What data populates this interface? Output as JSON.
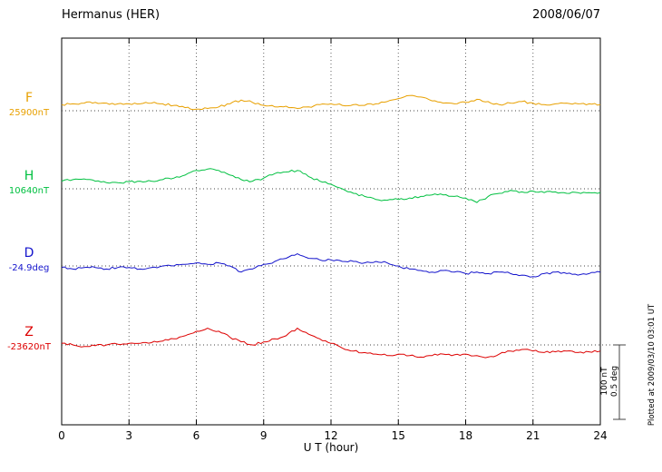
{
  "header": {
    "title": "Hermanus (HER)",
    "date": "2008/06/07"
  },
  "x_axis": {
    "label": "U T (hour)",
    "ticks": [
      0,
      3,
      6,
      9,
      12,
      15,
      18,
      21,
      24
    ]
  },
  "scale_bar": {
    "label_nt": "100 nT",
    "label_deg": "0.5 deg"
  },
  "plotted_note": "Plotted at 2009/03/10 03:01 UT",
  "chart_data": {
    "type": "line",
    "title": "Hermanus (HER) magnetogram 2008/06/07",
    "xlabel": "U T (hour)",
    "x_range": [
      0,
      24
    ],
    "x_step_hours": 0.5,
    "grid": "dotted vertical every 3 hours, dotted horizontal baseline per trace",
    "scale": {
      "nT_per_division": 100,
      "deg_per_division": 0.5
    },
    "series": [
      {
        "name": "F",
        "label": "F",
        "baseline_label": "25900nT",
        "unit": "nT",
        "color": "#e8a000",
        "values": [
          8,
          9,
          10,
          11,
          10,
          9,
          9,
          9,
          10,
          9,
          7,
          4,
          2,
          3,
          5,
          9,
          14,
          11,
          7,
          5,
          6,
          3,
          5,
          8,
          9,
          7,
          8,
          7,
          9,
          12,
          16,
          20,
          18,
          13,
          10,
          9,
          11,
          15,
          12,
          8,
          10,
          12,
          10,
          8,
          9,
          10,
          9,
          9,
          8
        ]
      },
      {
        "name": "H",
        "label": "H",
        "baseline_label": "10640nT",
        "unit": "nT",
        "color": "#00c040",
        "values": [
          10,
          12,
          13,
          10,
          8,
          8,
          9,
          10,
          10,
          12,
          14,
          18,
          24,
          26,
          24,
          18,
          12,
          10,
          14,
          20,
          22,
          24,
          16,
          10,
          6,
          0,
          -6,
          -10,
          -14,
          -15,
          -14,
          -12,
          -10,
          -8,
          -8,
          -10,
          -12,
          -18,
          -10,
          -6,
          -2,
          -4,
          -3,
          -5,
          -4,
          -6,
          -5,
          -5,
          -5
        ]
      },
      {
        "name": "D",
        "label": "D",
        "baseline_label": "-24.9deg",
        "unit": "deg",
        "color": "#1414cc",
        "values": [
          -0.01,
          -0.02,
          -0.01,
          -0.01,
          -0.02,
          -0.01,
          -0.01,
          -0.02,
          -0.01,
          0,
          0,
          0.01,
          0.02,
          0.01,
          0.02,
          0,
          -0.04,
          -0.02,
          0.01,
          0.03,
          0.05,
          0.08,
          0.05,
          0.04,
          0.04,
          0.03,
          0.03,
          0.02,
          0.03,
          0.02,
          0,
          -0.02,
          -0.03,
          -0.04,
          -0.03,
          -0.04,
          -0.05,
          -0.04,
          -0.05,
          -0.04,
          -0.05,
          -0.06,
          -0.07,
          -0.05,
          -0.04,
          -0.05,
          -0.06,
          -0.05,
          -0.04
        ]
      },
      {
        "name": "Z",
        "label": "Z",
        "baseline_label": "-23620nT",
        "unit": "nT",
        "color": "#dd0000",
        "values": [
          2,
          0,
          -2,
          -1,
          0,
          1,
          2,
          2,
          3,
          5,
          8,
          12,
          18,
          22,
          18,
          10,
          4,
          0,
          4,
          8,
          12,
          22,
          14,
          8,
          2,
          -4,
          -8,
          -10,
          -12,
          -14,
          -12,
          -14,
          -16,
          -14,
          -12,
          -13,
          -12,
          -14,
          -16,
          -12,
          -8,
          -6,
          -8,
          -10,
          -9,
          -8,
          -10,
          -9,
          -8
        ]
      }
    ]
  }
}
